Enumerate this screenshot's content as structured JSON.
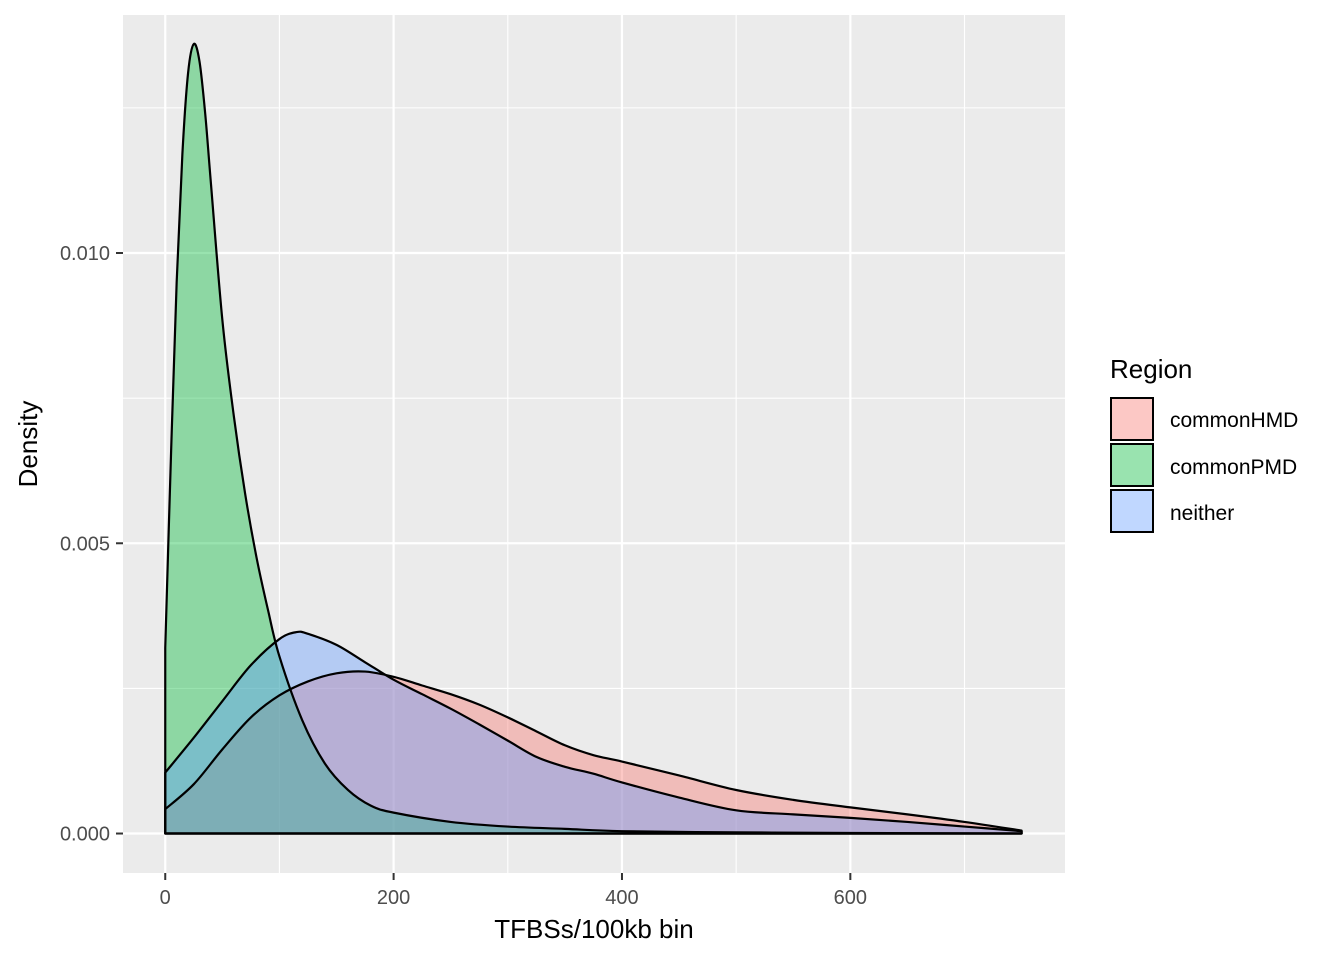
{
  "chart_data": {
    "type": "area",
    "subtype": "density",
    "title": "",
    "xlabel": "TFBSs/100kb bin",
    "ylabel": "Density",
    "xlim": [
      -37,
      788
    ],
    "ylim": [
      -0.00068,
      0.0141
    ],
    "x_ticks": [
      0,
      200,
      400,
      600
    ],
    "x_tick_labels": [
      "0",
      "200",
      "400",
      "600"
    ],
    "y_ticks": [
      0.0,
      0.005,
      0.01
    ],
    "y_tick_labels": [
      "0.000",
      "0.005",
      "0.010"
    ],
    "grid": true,
    "legend": {
      "title": "Region",
      "placement": "right",
      "entries": [
        "commonHMD",
        "commonPMD",
        "neither"
      ]
    },
    "series": [
      {
        "name": "commonHMD",
        "color": "#F8766D",
        "x": [
          0,
          25,
          50,
          75,
          100,
          125,
          150,
          175,
          200,
          225,
          250,
          275,
          300,
          325,
          350,
          375,
          400,
          450,
          500,
          550,
          600,
          650,
          700,
          750
        ],
        "y": [
          0.00042,
          0.00085,
          0.00145,
          0.002,
          0.00238,
          0.00262,
          0.00276,
          0.00279,
          0.0027,
          0.00255,
          0.0024,
          0.00222,
          0.002,
          0.00176,
          0.00152,
          0.00135,
          0.00124,
          0.001,
          0.00075,
          0.00058,
          0.00045,
          0.00033,
          0.0002,
          5e-05
        ]
      },
      {
        "name": "commonPMD",
        "color": "#00BA38",
        "x": [
          0,
          5,
          10,
          15,
          20,
          25,
          30,
          35,
          40,
          50,
          60,
          70,
          80,
          90,
          100,
          120,
          140,
          160,
          180,
          200,
          250,
          300,
          350,
          400,
          500,
          600,
          750
        ],
        "y": [
          0.0032,
          0.0065,
          0.0095,
          0.0117,
          0.0131,
          0.0136,
          0.0133,
          0.0124,
          0.0112,
          0.00885,
          0.0072,
          0.00585,
          0.00475,
          0.00385,
          0.00305,
          0.00195,
          0.0012,
          0.00075,
          0.00048,
          0.00036,
          0.0002,
          0.00012,
          8e-05,
          4e-05,
          2e-05,
          1e-05,
          0.0
        ]
      },
      {
        "name": "neither",
        "color": "#619CFF",
        "x": [
          0,
          25,
          50,
          75,
          100,
          115,
          125,
          150,
          175,
          200,
          225,
          250,
          275,
          300,
          325,
          350,
          375,
          400,
          450,
          500,
          550,
          600,
          650,
          700,
          750
        ],
        "y": [
          0.00105,
          0.00165,
          0.00228,
          0.0029,
          0.00335,
          0.00347,
          0.00344,
          0.00325,
          0.00295,
          0.00265,
          0.0024,
          0.00215,
          0.00188,
          0.0016,
          0.00132,
          0.00115,
          0.00103,
          0.00088,
          0.00062,
          0.0004,
          0.00033,
          0.00027,
          0.0002,
          0.00012,
          4e-05
        ]
      }
    ]
  }
}
